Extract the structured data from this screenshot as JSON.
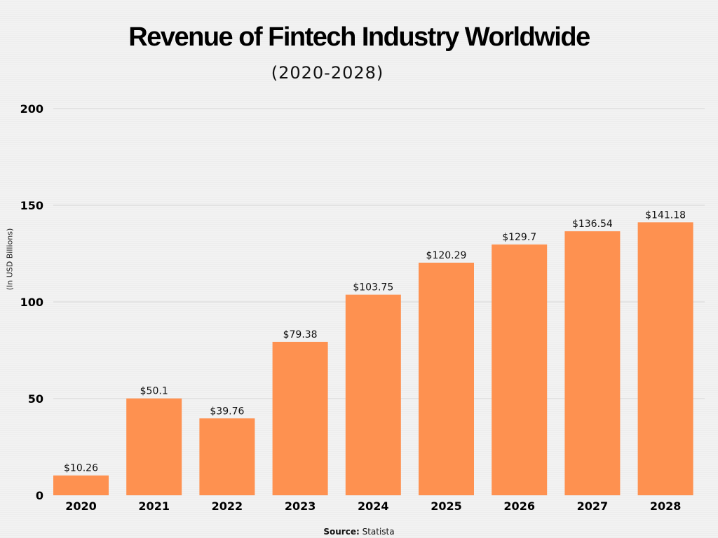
{
  "chart_data": {
    "type": "bar",
    "title": "Revenue of Fintech Industry Worldwide",
    "subtitle": "(2020-2028)",
    "ylabel": "(In USD Billions)",
    "xlabel": "",
    "categories": [
      "2020",
      "2021",
      "2022",
      "2023",
      "2024",
      "2025",
      "2026",
      "2027",
      "2028"
    ],
    "values": [
      10.26,
      50.1,
      39.76,
      79.38,
      103.75,
      120.29,
      129.7,
      136.54,
      141.18
    ],
    "data_labels": [
      "$10.26",
      "$50.1",
      "$39.76",
      "$79.38",
      "$103.75",
      "$120.29",
      "$129.7",
      "$136.54",
      "$141.18"
    ],
    "ylim": [
      0,
      200
    ],
    "yticks": [
      0,
      50,
      100,
      150,
      200
    ],
    "grid": true,
    "bar_color": "#fe9150",
    "source_label": "Source:",
    "source": "Statista"
  }
}
